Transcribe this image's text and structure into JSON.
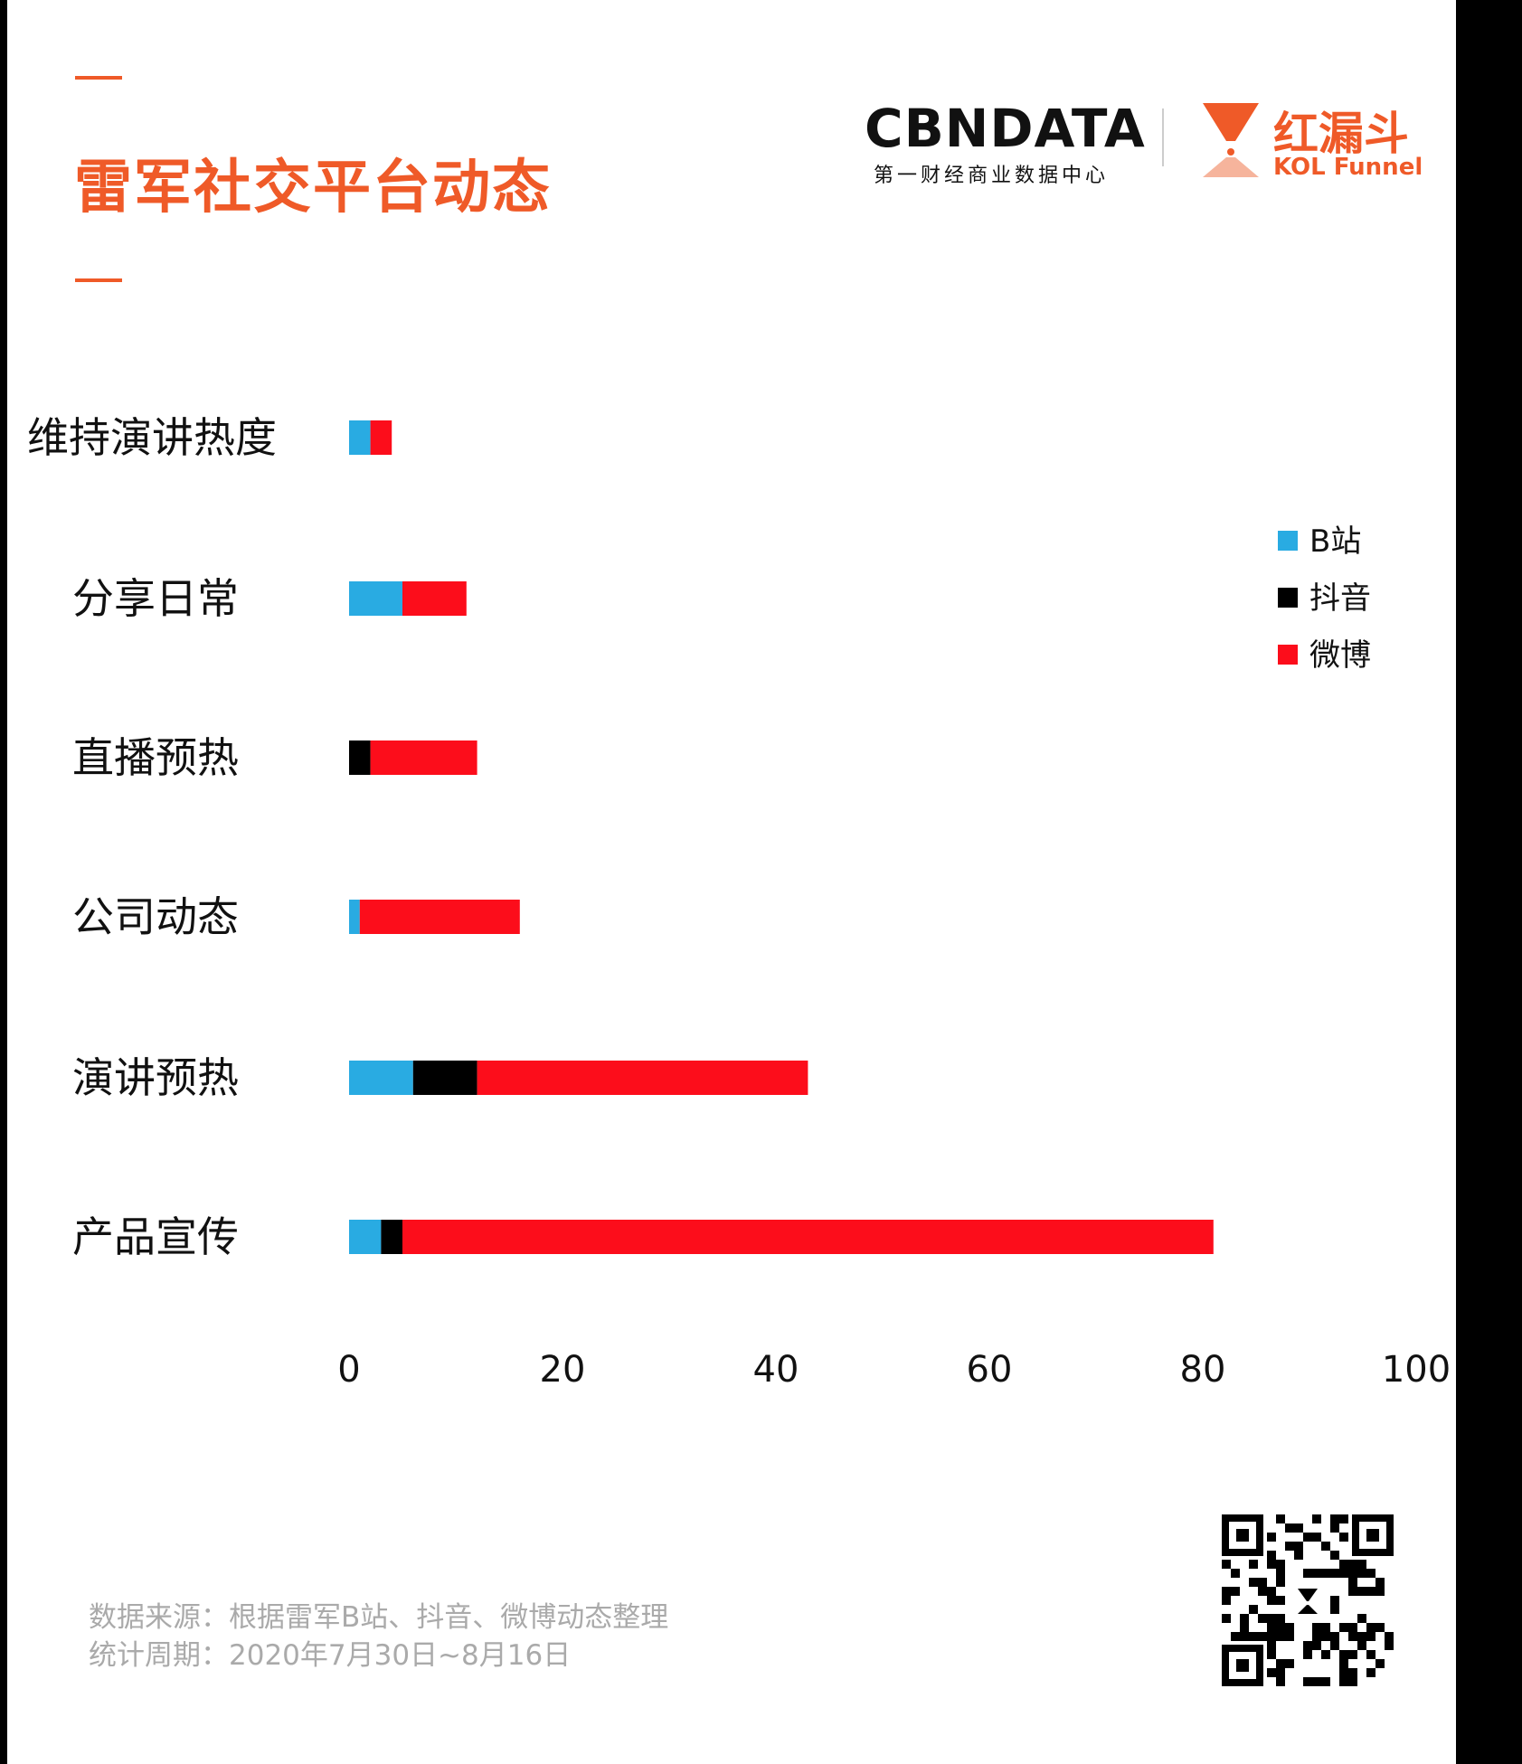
{
  "header": {
    "title": "雷军社交平台动态",
    "cbn_logo": "CBNDATA",
    "cbn_subtitle": "第一财经商业数据中心",
    "kol_logo_cn": "红漏斗",
    "kol_logo_en": "KOL Funnel"
  },
  "footer": {
    "source": "数据来源：根据雷军B站、抖音、微博动态整理",
    "period": "统计周期：2020年7月30日~8月16日"
  },
  "colors": {
    "accent": "#ef5a28",
    "bilibili": "#29abe2",
    "douyin": "#000000",
    "weibo": "#fc0d1b"
  },
  "chart_data": {
    "type": "bar",
    "orientation": "horizontal",
    "stacked": true,
    "categories": [
      "维持演讲热度",
      "分享日常",
      "直播预热",
      "公司动态",
      "演讲预热",
      "产品宣传"
    ],
    "series": [
      {
        "name": "B站",
        "values": [
          2,
          5,
          0,
          1,
          6,
          3
        ]
      },
      {
        "name": "抖音",
        "values": [
          0,
          0,
          2,
          0,
          6,
          2
        ]
      },
      {
        "name": "微博",
        "values": [
          2,
          6,
          10,
          15,
          31,
          76
        ]
      }
    ],
    "xlim": [
      0,
      100
    ],
    "xticks": [
      "0",
      "20",
      "40",
      "60",
      "80",
      "100"
    ],
    "grid": false,
    "legend": "right"
  }
}
